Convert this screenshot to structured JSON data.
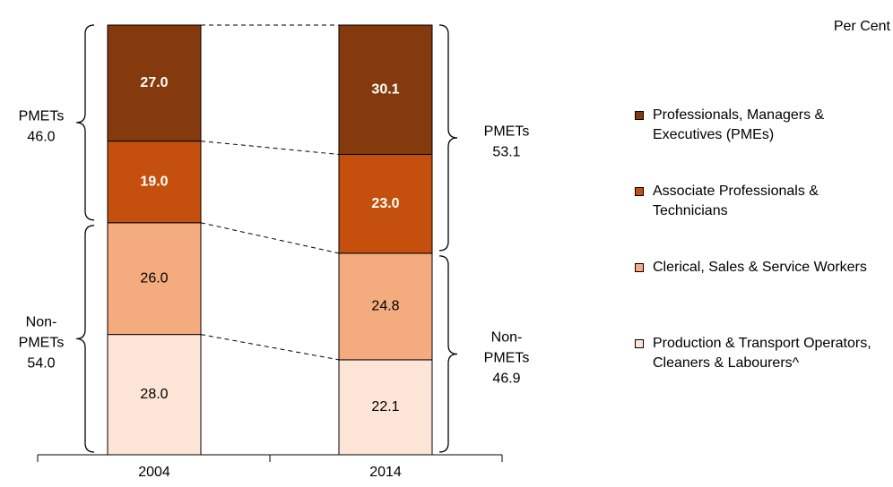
{
  "chart_data": {
    "type": "stacked_bar",
    "unit_label": "Per Cent",
    "categories": [
      "2004",
      "2014"
    ],
    "series": [
      {
        "name": "Production & Transport Operators, Cleaners & Labourers^",
        "color": "#fce4d6",
        "values": [
          28.0,
          22.1
        ],
        "value_labels": [
          "28.0",
          "22.1"
        ]
      },
      {
        "name": "Clerical, Sales & Service Workers",
        "color": "#f4ac7e",
        "values": [
          26.0,
          24.8
        ],
        "value_labels": [
          "26.0",
          "24.8"
        ]
      },
      {
        "name": "Associate Professionals & Technicians",
        "color": "#c5500e",
        "values": [
          19.0,
          23.0
        ],
        "value_labels": [
          "19.0",
          "23.0"
        ]
      },
      {
        "name": "Professionals, Managers & Executives (PMEs)",
        "color": "#843a0c",
        "values": [
          27.0,
          30.1
        ],
        "value_labels": [
          "27.0",
          "30.1"
        ]
      }
    ],
    "groups": [
      {
        "label_lines": [
          "Non-",
          "PMETs"
        ],
        "values": [
          54.0,
          46.9
        ],
        "value_labels": [
          "54.0",
          "46.9"
        ]
      },
      {
        "label_lines": [
          "PMETs"
        ],
        "values": [
          46.0,
          53.1
        ],
        "value_labels": [
          "46.0",
          "53.1"
        ]
      }
    ]
  }
}
